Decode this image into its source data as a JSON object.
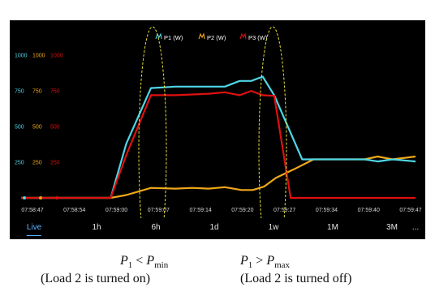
{
  "chart_data": {
    "type": "line",
    "x_tick_labels": [
      "07:58:47",
      "07:58:54",
      "07:59:00",
      "07:59:07",
      "07:59:14",
      "07:59:20",
      "07:59:27",
      "07:59:34",
      "07:59:40",
      "07:59:47"
    ],
    "y_ticks": [
      250,
      500,
      750,
      1000
    ],
    "y_tick_label_sets": [
      {
        "series": "P1 (W)",
        "labels": [
          "250",
          "500",
          "750",
          "1000"
        ]
      },
      {
        "series": "P2 (W)",
        "labels": [
          "250",
          "500",
          "750",
          "1000"
        ]
      },
      {
        "series": "P3 (W)",
        "labels": [
          "250",
          "500",
          "750",
          "1000"
        ]
      }
    ],
    "ylim": [
      0,
      1120
    ],
    "legend_position": "top-center",
    "series": [
      {
        "name": "P1 (W)",
        "color": "#4fd6e6",
        "x": [
          0,
          93,
          109,
          128,
          158,
          188,
          228,
          248,
          266,
          280,
          294,
          308,
          342,
          382,
          418,
          434,
          452,
          480
        ],
        "values": [
          0,
          0,
          0,
          380,
          770,
          780,
          780,
          780,
          820,
          820,
          850,
          720,
          270,
          270,
          270,
          255,
          270,
          255
        ]
      },
      {
        "name": "P2 (W)",
        "color": "#f0a818",
        "x": [
          0,
          93,
          109,
          128,
          158,
          188,
          208,
          228,
          248,
          268,
          282,
          296,
          310,
          332,
          356,
          382,
          418,
          434,
          452,
          480
        ],
        "values": [
          0,
          0,
          0,
          20,
          70,
          65,
          70,
          65,
          75,
          55,
          55,
          80,
          140,
          200,
          270,
          270,
          270,
          290,
          270,
          290
        ]
      },
      {
        "name": "P3 (W)",
        "color": "#e01010",
        "x": [
          0,
          93,
          109,
          128,
          158,
          188,
          208,
          228,
          248,
          266,
          280,
          294,
          308,
          328,
          348,
          382,
          418,
          452,
          480
        ],
        "values": [
          0,
          0,
          0,
          300,
          720,
          720,
          725,
          730,
          740,
          720,
          750,
          720,
          715,
          0,
          0,
          0,
          0,
          0,
          0
        ]
      }
    ]
  },
  "time_ranges": [
    "Live",
    "1h",
    "6h",
    "1d",
    "1w",
    "1M",
    "3M",
    "..."
  ],
  "active_range": "Live",
  "captions": {
    "left_condition": {
      "lhs": "P",
      "lhs_sub": "1",
      "op": " < ",
      "rhs": "P",
      "rhs_sub": "min"
    },
    "right_condition": {
      "lhs": "P",
      "lhs_sub": "1",
      "op": " > ",
      "rhs": "P",
      "rhs_sub": "max"
    },
    "left_note": "(Load 2 is turned on)",
    "right_note": "(Load 2 is turned off)"
  },
  "colors": {
    "background": "#000000",
    "ellipse": "#e6e032"
  }
}
